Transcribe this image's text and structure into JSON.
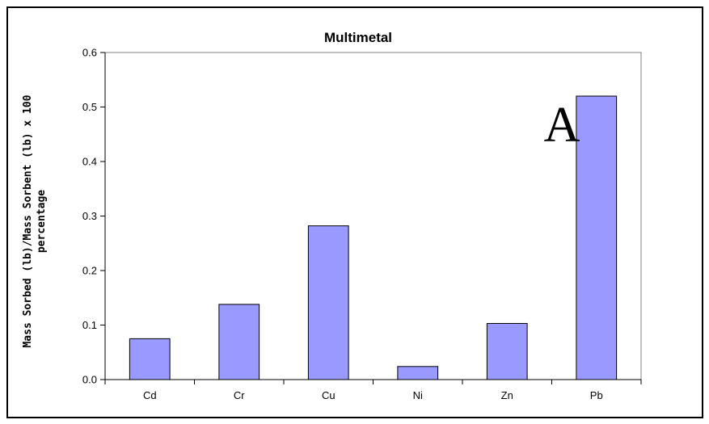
{
  "chart_data": {
    "type": "bar",
    "title": "Multimetal",
    "categories": [
      "Cd",
      "Cr",
      "Cu",
      "Ni",
      "Zn",
      "Pb"
    ],
    "values": [
      0.075,
      0.138,
      0.282,
      0.024,
      0.103,
      0.52
    ],
    "ylabel_lines": [
      "Mass Sorbed (lb)/Mass Sorbent (lb) x 100",
      "percentage"
    ],
    "xlabel": "",
    "ylim": [
      0,
      0.6
    ],
    "yticks": [
      "0.0",
      "0.1",
      "0.2",
      "0.3",
      "0.4",
      "0.5",
      "0.6"
    ],
    "ytick_values": [
      0,
      0.1,
      0.2,
      0.3,
      0.4,
      0.5,
      0.6
    ],
    "annotation": "A",
    "grid": false,
    "legend": "none",
    "colors": {
      "bar_fill": "#9999ff",
      "bar_stroke": "#000000",
      "plot_border": "#808080",
      "axis": "#000000"
    }
  }
}
